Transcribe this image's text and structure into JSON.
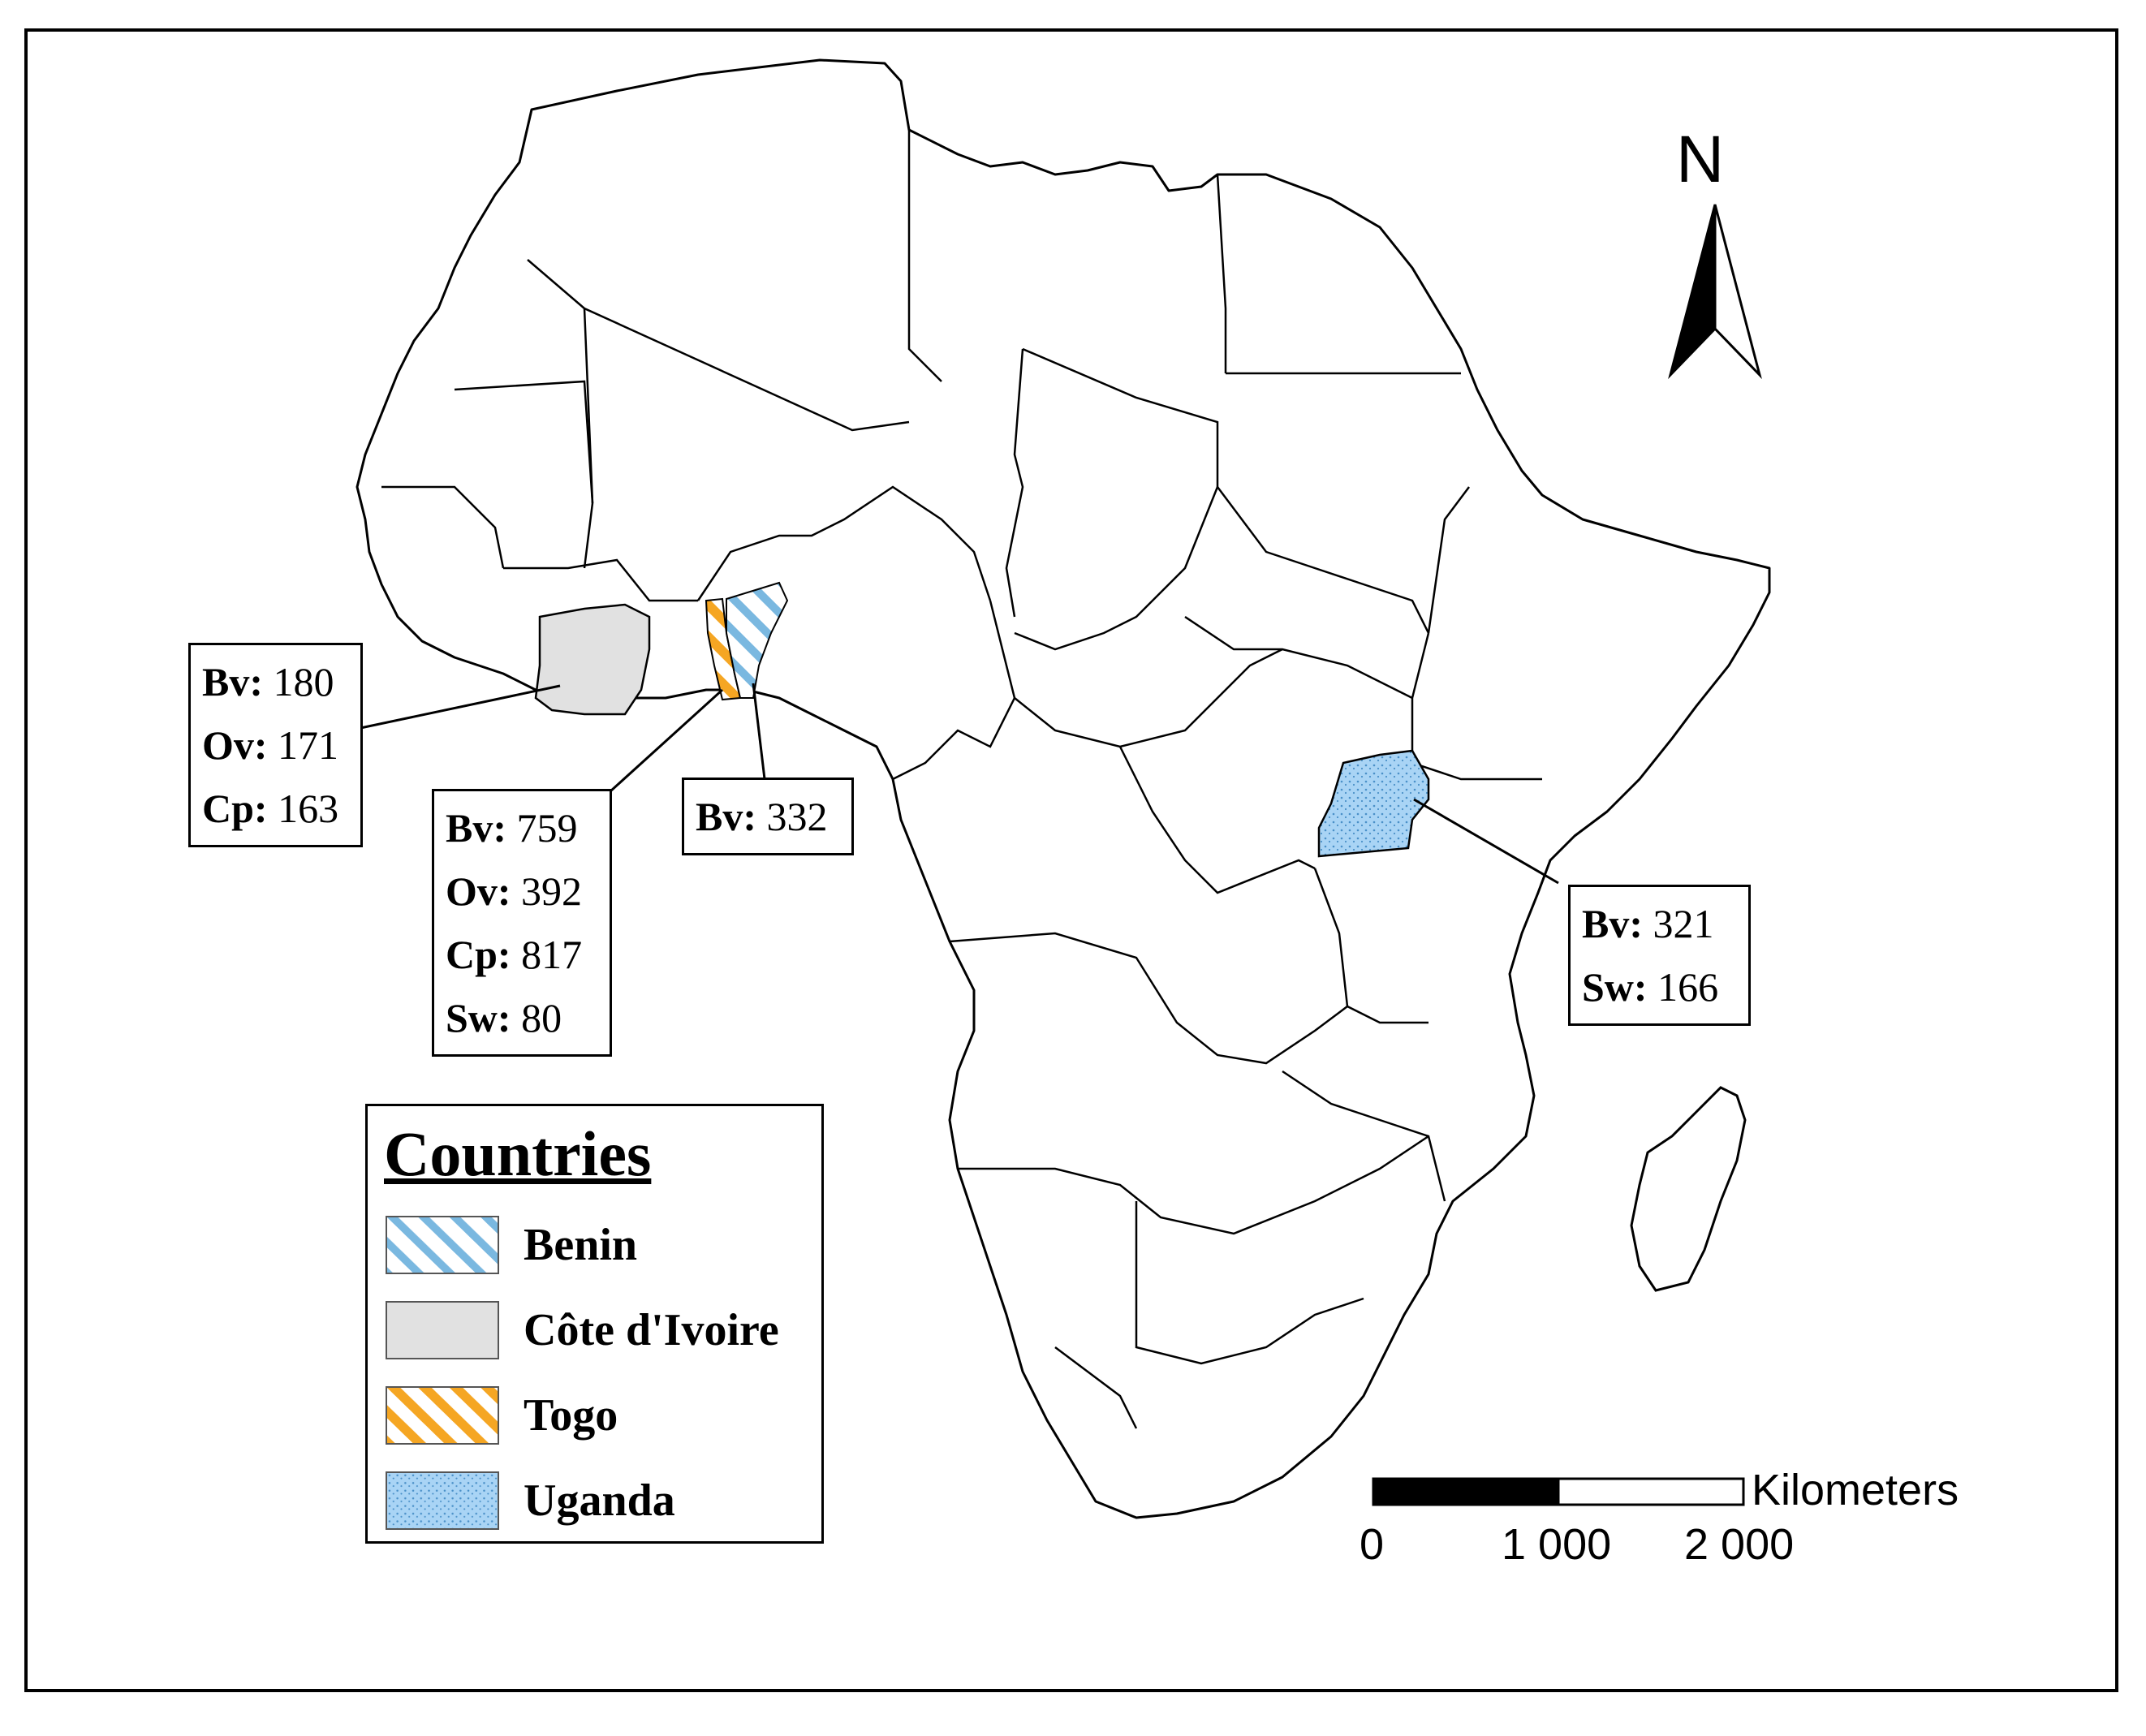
{
  "map": {
    "north_label": "N",
    "scale": {
      "unit_label": "Kilometers",
      "ticks": [
        "0",
        "1 000",
        "2 000"
      ]
    },
    "annotations": [
      {
        "country": "Côte d'Ivoire",
        "values": [
          {
            "k": "Bv:",
            "v": "180"
          },
          {
            "k": "Ov:",
            "v": "171"
          },
          {
            "k": "Cp:",
            "v": "163"
          }
        ]
      },
      {
        "country": "Togo",
        "values": [
          {
            "k": "Bv:",
            "v": "759"
          },
          {
            "k": "Ov:",
            "v": "392"
          },
          {
            "k": "Cp:",
            "v": "817"
          },
          {
            "k": "Sw:",
            "v": "80"
          }
        ]
      },
      {
        "country": "Benin",
        "values": [
          {
            "k": "Bv:",
            "v": "332"
          }
        ]
      },
      {
        "country": "Uganda",
        "values": [
          {
            "k": "Bv:",
            "v": "321"
          },
          {
            "k": "Sw:",
            "v": "166"
          }
        ]
      }
    ],
    "legend": {
      "title": "Countries",
      "items": [
        {
          "label": "Benin",
          "pattern": "hatch-blue"
        },
        {
          "label": "Côte d'Ivoire",
          "pattern": "solid-gray"
        },
        {
          "label": "Togo",
          "pattern": "hatch-orange"
        },
        {
          "label": "Uganda",
          "pattern": "dots-blue"
        }
      ]
    },
    "colors": {
      "benin_stripe": "#7ab8e0",
      "cote_divoire_fill": "#e1e1e1",
      "togo_stripe": "#f5a623",
      "uganda_fill": "#a9d4f5"
    }
  }
}
